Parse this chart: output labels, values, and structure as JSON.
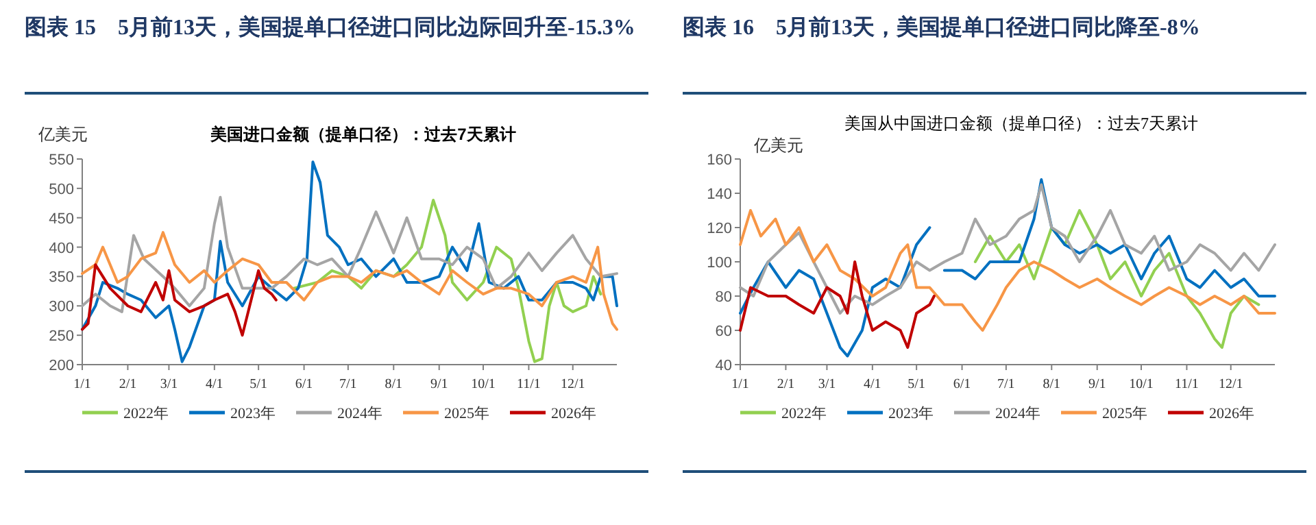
{
  "chart_data": [
    {
      "type": "line",
      "title": "图表 15　5月前13天，美国提单口径进口同比边际回升至-15.3%",
      "subtitle": "美国进口金额（提单口径）：过去7天累计",
      "ylabel": "亿美元",
      "legend": "bottom",
      "ylim": [
        200,
        550
      ],
      "yticks": [
        200,
        250,
        300,
        350,
        400,
        450,
        500,
        550
      ],
      "xlim": [
        "--01-01",
        "--12-31"
      ],
      "xticks": [
        {
          "value": "--01-01",
          "label": "1/1"
        },
        {
          "value": "--02-01",
          "label": "2/1"
        },
        {
          "value": "--03-01",
          "label": "3/1"
        },
        {
          "value": "--04-01",
          "label": "4/1"
        },
        {
          "value": "--05-01",
          "label": "5/1"
        },
        {
          "value": "--06-01",
          "label": "6/1"
        },
        {
          "value": "--07-01",
          "label": "7/1"
        },
        {
          "value": "--08-01",
          "label": "8/1"
        },
        {
          "value": "--09-01",
          "label": "9/1"
        },
        {
          "value": "--10-01",
          "label": "10/1"
        },
        {
          "value": "--11-01",
          "label": "11/1"
        },
        {
          "value": "--12-01",
          "label": "12/1"
        }
      ],
      "series": [
        {
          "name": "2022年",
          "color": "#92d050",
          "x": [
            "--05-25",
            "--06-10",
            "--06-20",
            "--07-01",
            "--07-10",
            "--07-20",
            "--08-01",
            "--08-10",
            "--08-20",
            "--08-28",
            "--09-05",
            "--09-10",
            "--09-20",
            "--10-01",
            "--10-10",
            "--10-20",
            "--10-25",
            "--11-01",
            "--11-05",
            "--11-10",
            "--11-15",
            "--11-20",
            "--11-25",
            "--12-01",
            "--12-10",
            "--12-15",
            "--12-20"
          ],
          "values": [
            330,
            340,
            360,
            350,
            330,
            360,
            350,
            370,
            400,
            480,
            420,
            340,
            310,
            340,
            400,
            380,
            330,
            240,
            205,
            210,
            300,
            340,
            300,
            290,
            300,
            350,
            320
          ]
        },
        {
          "name": "2023年",
          "color": "#0070c0",
          "x": [
            "--01-01",
            "--01-10",
            "--01-15",
            "--01-25",
            "--02-01",
            "--02-10",
            "--02-20",
            "--03-01",
            "--03-05",
            "--03-10",
            "--03-15",
            "--03-25",
            "--04-01",
            "--04-05",
            "--04-10",
            "--04-20",
            "--05-01",
            "--05-10",
            "--05-20",
            "--05-28",
            "--06-03",
            "--06-07",
            "--06-12",
            "--06-17",
            "--06-25",
            "--07-01",
            "--07-10",
            "--07-20",
            "--08-01",
            "--08-10",
            "--08-20",
            "--09-01",
            "--09-10",
            "--09-20",
            "--09-28",
            "--10-05",
            "--10-15",
            "--10-25",
            "--11-01",
            "--11-10",
            "--11-20",
            "--12-01",
            "--12-10",
            "--12-15",
            "--12-20",
            "--12-28",
            "--12-31"
          ],
          "values": [
            260,
            300,
            340,
            330,
            320,
            310,
            280,
            300,
            260,
            205,
            230,
            300,
            310,
            410,
            340,
            300,
            350,
            330,
            310,
            330,
            380,
            545,
            510,
            420,
            400,
            370,
            380,
            350,
            380,
            340,
            340,
            350,
            400,
            360,
            440,
            340,
            330,
            350,
            310,
            310,
            340,
            340,
            330,
            310,
            350,
            350,
            300
          ]
        },
        {
          "name": "2024年",
          "color": "#a5a5a5",
          "x": [
            "--01-01",
            "--01-10",
            "--01-20",
            "--01-28",
            "--02-05",
            "--02-12",
            "--02-25",
            "--03-05",
            "--03-15",
            "--03-25",
            "--04-01",
            "--04-05",
            "--04-10",
            "--04-20",
            "--05-01",
            "--05-10",
            "--05-20",
            "--06-01",
            "--06-10",
            "--06-20",
            "--07-01",
            "--07-10",
            "--07-20",
            "--08-01",
            "--08-10",
            "--08-20",
            "--09-01",
            "--09-10",
            "--09-20",
            "--10-01",
            "--10-10",
            "--10-20",
            "--11-01",
            "--11-10",
            "--11-20",
            "--12-01",
            "--12-10",
            "--12-20",
            "--12-31"
          ],
          "values": [
            300,
            320,
            300,
            290,
            420,
            380,
            350,
            330,
            300,
            330,
            440,
            485,
            400,
            330,
            330,
            330,
            350,
            380,
            370,
            380,
            350,
            400,
            460,
            390,
            450,
            380,
            380,
            370,
            400,
            380,
            330,
            350,
            390,
            360,
            390,
            420,
            380,
            350,
            355
          ]
        },
        {
          "name": "2025年",
          "color": "#f79646",
          "x": [
            "--01-01",
            "--01-10",
            "--01-15",
            "--01-25",
            "--02-01",
            "--02-10",
            "--02-20",
            "--02-25",
            "--03-05",
            "--03-15",
            "--03-25",
            "--04-01",
            "--04-10",
            "--04-20",
            "--05-01",
            "--05-10",
            "--05-20",
            "--06-01",
            "--06-10",
            "--06-20",
            "--07-01",
            "--07-10",
            "--07-20",
            "--08-01",
            "--08-10",
            "--08-20",
            "--09-01",
            "--09-10",
            "--09-20",
            "--10-01",
            "--10-10",
            "--10-20",
            "--11-01",
            "--11-10",
            "--11-20",
            "--12-01",
            "--12-10",
            "--12-18",
            "--12-22",
            "--12-28",
            "--12-31"
          ],
          "values": [
            355,
            370,
            400,
            340,
            350,
            380,
            390,
            425,
            370,
            340,
            360,
            340,
            360,
            380,
            370,
            340,
            340,
            310,
            340,
            350,
            350,
            340,
            360,
            350,
            360,
            340,
            320,
            360,
            340,
            320,
            330,
            330,
            320,
            300,
            340,
            350,
            340,
            400,
            320,
            270,
            260
          ]
        },
        {
          "name": "2026年",
          "color": "#c00000",
          "x": [
            "--01-01",
            "--01-05",
            "--01-10",
            "--01-15",
            "--01-20",
            "--02-01",
            "--02-10",
            "--02-20",
            "--02-25",
            "--03-01",
            "--03-05",
            "--03-15",
            "--03-25",
            "--04-01",
            "--04-10",
            "--04-15",
            "--04-20",
            "--04-25",
            "--05-01",
            "--05-05",
            "--05-10",
            "--05-13"
          ],
          "values": [
            260,
            270,
            370,
            350,
            330,
            300,
            290,
            340,
            310,
            360,
            310,
            290,
            300,
            310,
            320,
            290,
            250,
            300,
            360,
            330,
            320,
            310
          ]
        }
      ]
    },
    {
      "type": "line",
      "title": "图表 16　5月前13天，美国提单口径进口同比降至-8%",
      "subtitle": "美国从中国进口金额（提单口径）：过去7天累计",
      "ylabel": "亿美元",
      "legend": "bottom",
      "ylim": [
        40,
        160
      ],
      "yticks": [
        40,
        60,
        80,
        100,
        120,
        140,
        160
      ],
      "xlim": [
        "--01-01",
        "--12-31"
      ],
      "xticks": [
        {
          "value": "--01-01",
          "label": "1/1"
        },
        {
          "value": "--02-01",
          "label": "2/1"
        },
        {
          "value": "--03-01",
          "label": "3/1"
        },
        {
          "value": "--04-01",
          "label": "4/1"
        },
        {
          "value": "--05-01",
          "label": "5/1"
        },
        {
          "value": "--06-01",
          "label": "6/1"
        },
        {
          "value": "--07-01",
          "label": "7/1"
        },
        {
          "value": "--08-01",
          "label": "8/1"
        },
        {
          "value": "--09-01",
          "label": "9/1"
        },
        {
          "value": "--10-01",
          "label": "10/1"
        },
        {
          "value": "--11-01",
          "label": "11/1"
        },
        {
          "value": "--12-01",
          "label": "12/1"
        }
      ],
      "series": [
        {
          "name": "2022年",
          "color": "#92d050",
          "x": [
            "--06-10",
            "--06-20",
            "--07-01",
            "--07-10",
            "--07-20",
            "--08-01",
            "--08-10",
            "--08-20",
            "--09-01",
            "--09-10",
            "--09-20",
            "--10-01",
            "--10-10",
            "--10-20",
            "--11-01",
            "--11-10",
            "--11-20",
            "--11-25",
            "--12-01",
            "--12-10",
            "--12-20"
          ],
          "values": [
            100,
            115,
            100,
            110,
            90,
            120,
            110,
            130,
            110,
            90,
            100,
            80,
            95,
            105,
            80,
            70,
            55,
            50,
            70,
            80,
            75
          ]
        },
        {
          "name": "2023年",
          "color": "#0070c0",
          "x": [
            "--01-01",
            "--01-10",
            "--01-20",
            "--02-01",
            "--02-10",
            "--02-20",
            "--03-01",
            "--03-10",
            "--03-15",
            "--03-25",
            "--04-01",
            "--04-10",
            "--04-20",
            "--05-01",
            "--05-10",
            "--05-15",
            "--05-20",
            "--06-01",
            "--06-10",
            "--06-20",
            "--07-01",
            "--07-10",
            "--07-20",
            "--07-25",
            "--08-01",
            "--08-10",
            "--08-20",
            "--09-01",
            "--09-10",
            "--09-20",
            "--10-01",
            "--10-10",
            "--10-20",
            "--11-01",
            "--11-10",
            "--11-20",
            "--12-01",
            "--12-10",
            "--12-20",
            "--12-31"
          ],
          "values": [
            70,
            85,
            100,
            85,
            95,
            90,
            70,
            50,
            45,
            60,
            85,
            90,
            85,
            110,
            120,
            null,
            95,
            95,
            90,
            100,
            100,
            100,
            125,
            148,
            120,
            110,
            105,
            110,
            105,
            110,
            90,
            105,
            115,
            90,
            85,
            95,
            85,
            90,
            80,
            80
          ]
        },
        {
          "name": "2024年",
          "color": "#a5a5a5",
          "x": [
            "--01-01",
            "--01-10",
            "--01-20",
            "--02-01",
            "--02-10",
            "--02-20",
            "--03-01",
            "--03-10",
            "--03-20",
            "--04-01",
            "--04-10",
            "--04-20",
            "--05-01",
            "--05-10",
            "--05-20",
            "--06-01",
            "--06-10",
            "--06-20",
            "--07-01",
            "--07-10",
            "--07-20",
            "--07-25",
            "--08-01",
            "--08-10",
            "--08-20",
            "--09-01",
            "--09-10",
            "--09-20",
            "--10-01",
            "--10-10",
            "--10-20",
            "--11-01",
            "--11-10",
            "--11-20",
            "--12-01",
            "--12-10",
            "--12-20",
            "--12-31"
          ],
          "values": [
            85,
            80,
            100,
            110,
            117,
            100,
            85,
            70,
            80,
            75,
            80,
            85,
            100,
            95,
            100,
            105,
            125,
            110,
            115,
            125,
            130,
            145,
            120,
            115,
            100,
            115,
            130,
            110,
            105,
            115,
            95,
            100,
            110,
            105,
            95,
            105,
            95,
            110
          ]
        },
        {
          "name": "2025年",
          "color": "#f79646",
          "x": [
            "--01-01",
            "--01-08",
            "--01-15",
            "--01-25",
            "--02-01",
            "--02-10",
            "--02-20",
            "--03-01",
            "--03-10",
            "--03-20",
            "--04-01",
            "--04-10",
            "--04-20",
            "--04-25",
            "--05-01",
            "--05-10",
            "--05-20",
            "--06-01",
            "--06-10",
            "--06-15",
            "--06-25",
            "--07-01",
            "--07-10",
            "--07-20",
            "--08-01",
            "--08-10",
            "--08-20",
            "--09-01",
            "--09-10",
            "--09-20",
            "--10-01",
            "--10-10",
            "--10-20",
            "--11-01",
            "--11-10",
            "--11-20",
            "--12-01",
            "--12-10",
            "--12-20",
            "--12-31"
          ],
          "values": [
            110,
            130,
            115,
            125,
            110,
            120,
            100,
            110,
            95,
            90,
            80,
            85,
            105,
            110,
            85,
            85,
            75,
            75,
            65,
            60,
            75,
            85,
            95,
            100,
            95,
            90,
            85,
            90,
            85,
            80,
            75,
            80,
            85,
            80,
            75,
            80,
            75,
            80,
            70,
            70
          ]
        },
        {
          "name": "2026年",
          "color": "#c00000",
          "x": [
            "--01-01",
            "--01-08",
            "--01-20",
            "--02-01",
            "--02-10",
            "--02-20",
            "--03-01",
            "--03-10",
            "--03-15",
            "--03-20",
            "--03-25",
            "--04-01",
            "--04-10",
            "--04-20",
            "--04-25",
            "--05-01",
            "--05-10",
            "--05-13"
          ],
          "values": [
            60,
            85,
            80,
            80,
            75,
            70,
            85,
            80,
            70,
            100,
            80,
            60,
            65,
            60,
            50,
            70,
            75,
            80
          ]
        }
      ]
    }
  ]
}
